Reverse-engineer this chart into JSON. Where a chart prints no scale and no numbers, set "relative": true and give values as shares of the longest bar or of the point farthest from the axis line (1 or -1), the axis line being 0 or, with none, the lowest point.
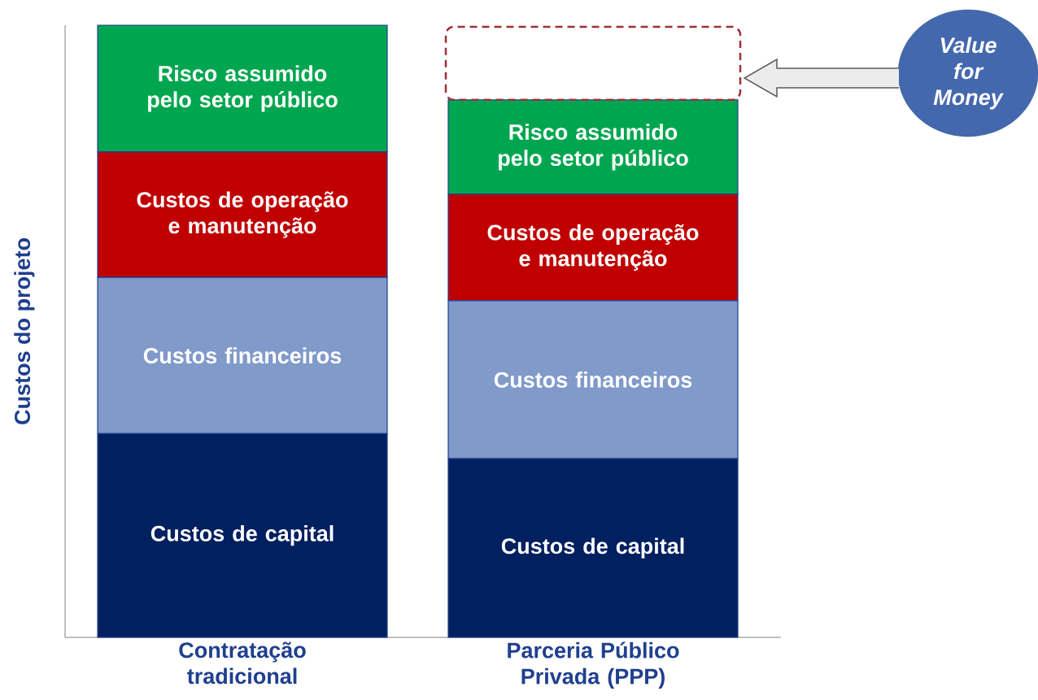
{
  "chart_data": {
    "type": "bar",
    "stacked": true,
    "relative": true,
    "ylabel": "Custos do projeto",
    "categories": [
      "Contratação tradicional",
      "Parceria Público Privada (PPP)"
    ],
    "series": [
      {
        "name": "Custos de capital",
        "color": "#002060",
        "values": [
          0.333,
          0.292
        ]
      },
      {
        "name": "Custos financeiros",
        "color": "#809ACA",
        "values": [
          0.255,
          0.258
        ]
      },
      {
        "name": "Custos de operação e manutenção",
        "color": "#C00000",
        "values": [
          0.205,
          0.174
        ]
      },
      {
        "name": "Risco assumido pelo setor público",
        "color": "#00A64F",
        "values": [
          0.207,
          0.154
        ]
      }
    ],
    "annotations": [
      "Value for Money"
    ]
  }
}
